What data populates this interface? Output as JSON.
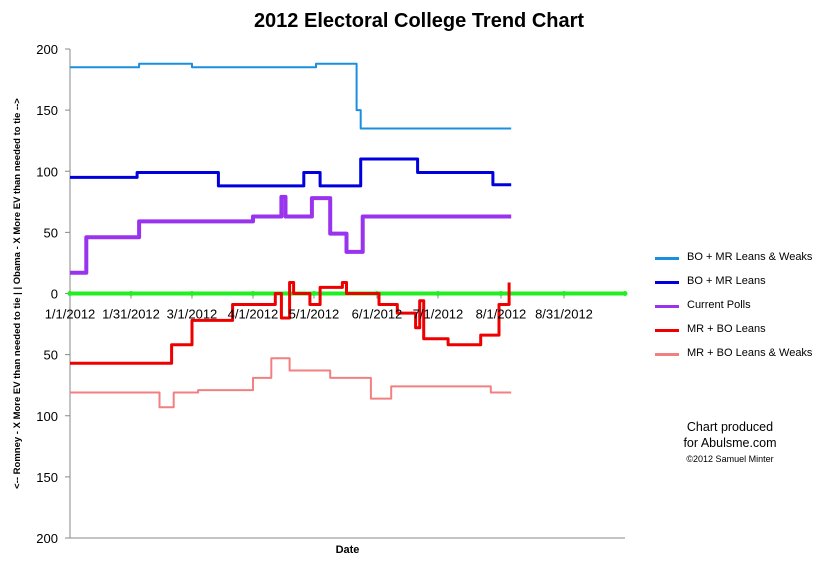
{
  "chart_title": "2012 Electoral College Trend Chart",
  "credit": {
    "line1": "Chart produced",
    "line2": "for Abulsme.com",
    "line3": "©2012 Samuel Minter"
  },
  "chart_data": {
    "type": "line",
    "title": "2012 Electoral College Trend Chart",
    "xlabel": "Date",
    "ylabel": "<-- Romney - X More EV than needed to tie | |  Obama - X More EV than needed to tie -->",
    "ylim": [
      -200,
      200
    ],
    "y_ticks": [
      200,
      150,
      100,
      50,
      0,
      -50,
      -100,
      -150,
      -200
    ],
    "y_tick_labels": [
      "200",
      "150",
      "100",
      "50",
      "0",
      "50",
      "100",
      "150",
      "200"
    ],
    "x_range": [
      "2012-01-01",
      "2012-09-30"
    ],
    "x_ticks": [
      "2012-01-01",
      "2012-01-31",
      "2012-03-01",
      "2012-03-31",
      "2012-04-30",
      "2012-05-31",
      "2012-06-30",
      "2012-07-31",
      "2012-08-31"
    ],
    "x_tick_labels": [
      "1/1/2012",
      "1/31/2012",
      "3/1/2012",
      "4/1/2012",
      "5/1/2012",
      "6/1/2012",
      "7/1/2012",
      "8/1/2012",
      "8/31/2012"
    ],
    "grid": false,
    "legend_position": "right",
    "series": [
      {
        "name": "BO + MR Leans & Weaks",
        "color": "#1a8fe0",
        "width": 2,
        "step": true,
        "points": [
          [
            "2012-01-01",
            185
          ],
          [
            "2012-02-04",
            188
          ],
          [
            "2012-03-01",
            185
          ],
          [
            "2012-05-01",
            188
          ],
          [
            "2012-05-21",
            150
          ],
          [
            "2012-05-22",
            150
          ],
          [
            "2012-05-23",
            135
          ],
          [
            "2012-08-05",
            135
          ]
        ]
      },
      {
        "name": "BO + MR Leans",
        "color": "#0000dd",
        "width": 3,
        "step": true,
        "points": [
          [
            "2012-01-01",
            95
          ],
          [
            "2012-02-03",
            99
          ],
          [
            "2012-03-14",
            88
          ],
          [
            "2012-04-25",
            99
          ],
          [
            "2012-05-03",
            88
          ],
          [
            "2012-05-23",
            110
          ],
          [
            "2012-06-20",
            99
          ],
          [
            "2012-07-27",
            89
          ],
          [
            "2012-08-05",
            89
          ]
        ]
      },
      {
        "name": "Current Polls",
        "color": "#9933ee",
        "width": 4,
        "step": true,
        "points": [
          [
            "2012-01-01",
            17
          ],
          [
            "2012-01-09",
            46
          ],
          [
            "2012-02-04",
            59
          ],
          [
            "2012-03-31",
            63
          ],
          [
            "2012-04-14",
            79
          ],
          [
            "2012-04-16",
            63
          ],
          [
            "2012-04-29",
            78
          ],
          [
            "2012-05-08",
            49
          ],
          [
            "2012-05-16",
            34
          ],
          [
            "2012-05-24",
            63
          ],
          [
            "2012-08-05",
            63
          ]
        ]
      },
      {
        "name": "MR + BO Leans",
        "color": "#ee0000",
        "width": 3,
        "step": true,
        "points": [
          [
            "2012-01-01",
            -57
          ],
          [
            "2012-02-20",
            -42
          ],
          [
            "2012-03-01",
            -22
          ],
          [
            "2012-03-21",
            -9
          ],
          [
            "2012-04-11",
            0
          ],
          [
            "2012-04-14",
            -20
          ],
          [
            "2012-04-18",
            9
          ],
          [
            "2012-04-20",
            0
          ],
          [
            "2012-04-28",
            -9
          ],
          [
            "2012-05-03",
            5
          ],
          [
            "2012-05-14",
            9
          ],
          [
            "2012-05-16",
            0
          ],
          [
            "2012-06-01",
            -9
          ],
          [
            "2012-06-10",
            -16
          ],
          [
            "2012-06-19",
            -28
          ],
          [
            "2012-06-21",
            -6
          ],
          [
            "2012-06-23",
            -37
          ],
          [
            "2012-07-05",
            -42
          ],
          [
            "2012-07-21",
            -34
          ],
          [
            "2012-07-30",
            -9
          ],
          [
            "2012-08-04",
            9
          ]
        ]
      },
      {
        "name": "MR + BO Leans & Weaks",
        "color": "#f28080",
        "width": 2,
        "step": true,
        "points": [
          [
            "2012-01-01",
            -81
          ],
          [
            "2012-02-14",
            -93
          ],
          [
            "2012-02-21",
            -81
          ],
          [
            "2012-03-04",
            -79
          ],
          [
            "2012-03-31",
            -69
          ],
          [
            "2012-04-09",
            -53
          ],
          [
            "2012-04-18",
            -63
          ],
          [
            "2012-05-08",
            -69
          ],
          [
            "2012-05-28",
            -86
          ],
          [
            "2012-06-07",
            -76
          ],
          [
            "2012-07-26",
            -81
          ],
          [
            "2012-08-05",
            -81
          ]
        ]
      },
      {
        "name": "",
        "color": "#22ee22",
        "width": 4,
        "step": true,
        "markers": true,
        "points": [
          [
            "2012-01-01",
            0
          ],
          [
            "2012-09-30",
            0
          ]
        ]
      }
    ]
  }
}
